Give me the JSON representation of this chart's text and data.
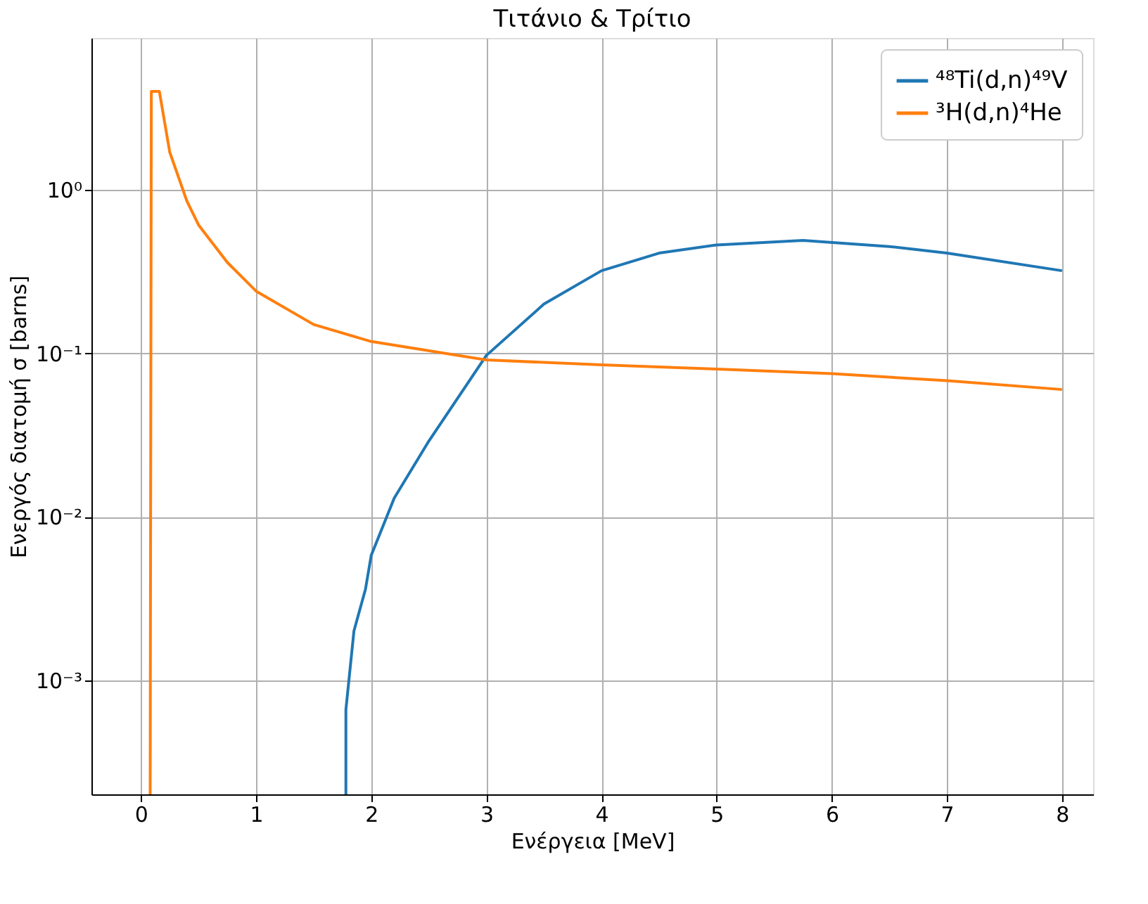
{
  "chart_data": {
    "type": "line",
    "title": "Τιτάνιο & Τρίτιο",
    "xlabel": "Ενέργεια [MeV]",
    "ylabel": "Ενεργός διατομή σ [barns]",
    "log": "y",
    "grid": true,
    "legend": "top right",
    "line_style": "solid",
    "marker": "none",
    "xlim": [
      -0.43,
      8.27
    ],
    "xticks": [
      0,
      1,
      2,
      3,
      4,
      5,
      6,
      7,
      8
    ],
    "ylim": [
      0.0002,
      8.5
    ],
    "yticks": [
      {
        "value": 1,
        "label": "10⁰"
      },
      {
        "value": 0.1,
        "label": "10⁻¹"
      },
      {
        "value": 0.01,
        "label": "10⁻²"
      },
      {
        "value": 0.001,
        "label": "10⁻³"
      }
    ],
    "series": [
      {
        "name": "⁴⁸Ti(d,n)⁴⁹V",
        "color": "#1f77b4",
        "x": [
          1.78,
          1.78,
          1.85,
          1.95,
          2.0,
          2.2,
          2.5,
          3.0,
          3.5,
          4.0,
          4.5,
          5.0,
          5.75,
          6.5,
          7.0,
          8.0
        ],
        "values": [
          0.0002,
          0.00066,
          0.002,
          0.0036,
          0.0058,
          0.013,
          0.029,
          0.097,
          0.2,
          0.32,
          0.41,
          0.46,
          0.49,
          0.45,
          0.41,
          0.32
        ]
      },
      {
        "name": "³H(d,n)⁴He",
        "color": "#ff7f0e",
        "x": [
          0.08,
          0.09,
          0.16,
          0.25,
          0.4,
          0.5,
          0.75,
          1.0,
          1.5,
          2.0,
          3.0,
          4.0,
          5.0,
          6.0,
          7.0,
          8.0
        ],
        "values": [
          0.0002,
          4.0,
          4.0,
          1.7,
          0.85,
          0.61,
          0.36,
          0.24,
          0.15,
          0.118,
          0.091,
          0.085,
          0.08,
          0.075,
          0.068,
          0.06
        ]
      }
    ]
  }
}
